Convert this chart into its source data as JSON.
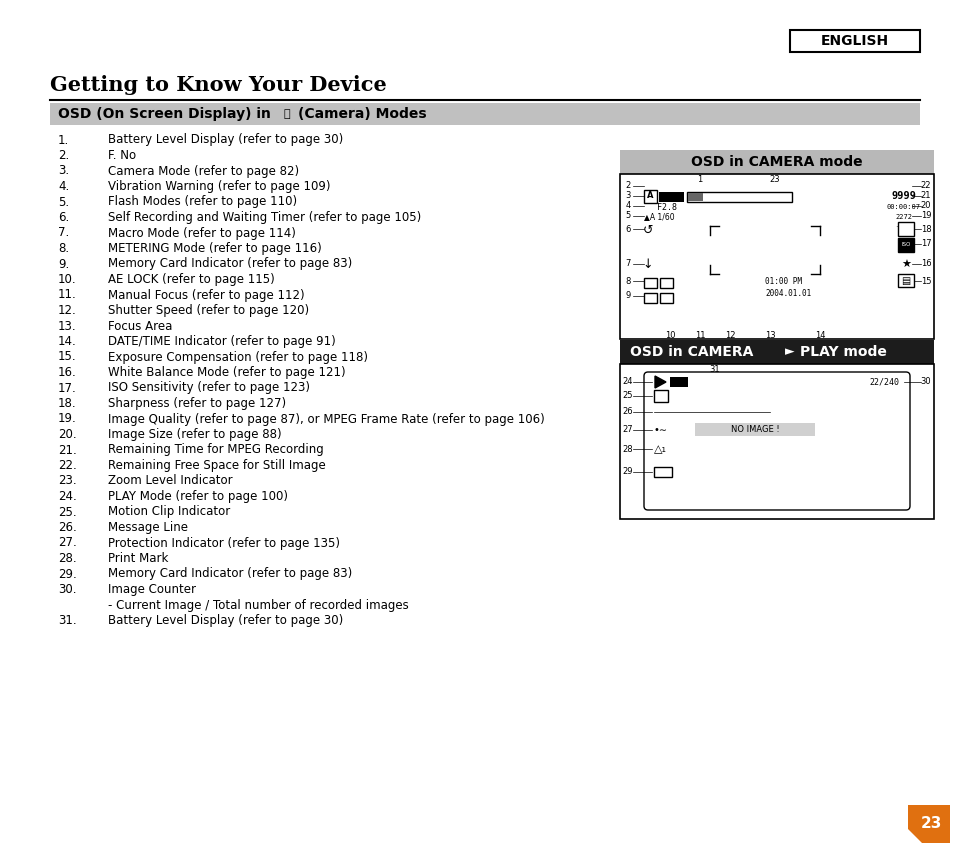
{
  "background_color": "#ffffff",
  "english_label": "ENGLISH",
  "title": "Getting to Know Your Device",
  "section_header_pre": "OSD (On Screen Display) in ",
  "section_header_post": "(Camera) Modes",
  "section_bg": "#c0c0c0",
  "items": [
    [
      "1.",
      "Battery Level Display (refer to page 30)"
    ],
    [
      "2.",
      "F. No"
    ],
    [
      "3.",
      "Camera Mode (refer to page 82)"
    ],
    [
      "4.",
      "Vibration Warning (refer to page 109)"
    ],
    [
      "5.",
      "Flash Modes (refer to page 110)"
    ],
    [
      "6.",
      "Self Recording and Waiting Timer (refer to page 105)"
    ],
    [
      "7.",
      "Macro Mode (refer to page 114)"
    ],
    [
      "8.",
      "METERING Mode (refer to page 116)"
    ],
    [
      "9.",
      "Memory Card Indicator (refer to page 83)"
    ],
    [
      "10.",
      "AE LOCK (refer to page 115)"
    ],
    [
      "11.",
      "Manual Focus (refer to page 112)"
    ],
    [
      "12.",
      "Shutter Speed (refer to page 120)"
    ],
    [
      "13.",
      "Focus Area"
    ],
    [
      "14.",
      "DATE/TIME Indicator (refer to page 91)"
    ],
    [
      "15.",
      "Exposure Compensation (refer to page 118)"
    ],
    [
      "16.",
      "White Balance Mode (refer to page 121)"
    ],
    [
      "17.",
      "ISO Sensitivity (refer to page 123)"
    ],
    [
      "18.",
      "Sharpness (refer to page 127)"
    ],
    [
      "19.",
      "Image Quality (refer to page 87), or MPEG Frame Rate (refer to page 106)"
    ],
    [
      "20.",
      "Image Size (refer to page 88)"
    ],
    [
      "21.",
      "Remaining Time for MPEG Recording"
    ],
    [
      "22.",
      "Remaining Free Space for Still Image"
    ],
    [
      "23.",
      "Zoom Level Indicator"
    ],
    [
      "24.",
      "PLAY Mode (refer to page 100)"
    ],
    [
      "25.",
      "Motion Clip Indicator"
    ],
    [
      "26.",
      "Message Line"
    ],
    [
      "27.",
      "Protection Indicator (refer to page 135)"
    ],
    [
      "28.",
      "Print Mark"
    ],
    [
      "29.",
      "Memory Card Indicator (refer to page 83)"
    ],
    [
      "30.",
      "Image Counter"
    ],
    [
      "",
      "- Current Image / Total number of recorded images"
    ],
    [
      "31.",
      "Battery Level Display (refer to page 30)"
    ]
  ],
  "box1_title": "OSD in CAMERA mode",
  "box2_title_parts": [
    "OSD in CAMERA ",
    "PLAY mode"
  ],
  "page_number": "23",
  "page_num_color": "#e07010"
}
